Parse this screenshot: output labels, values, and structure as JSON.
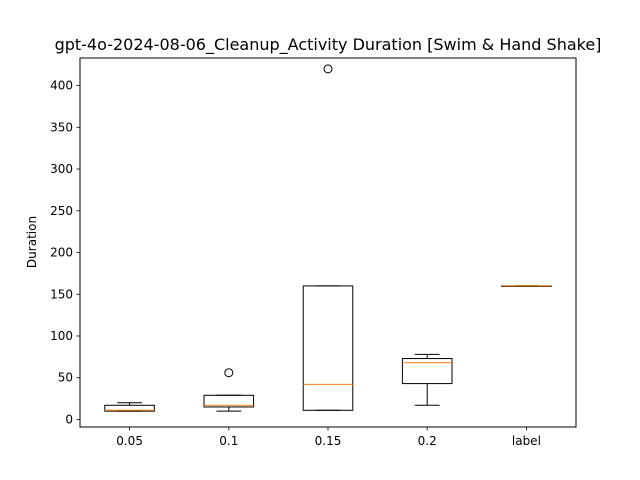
{
  "chart_data": {
    "type": "box",
    "title": "gpt-4o-2024-08-06_Cleanup_Activity Duration [Swim & Hand Shake]",
    "xlabel": "",
    "ylabel": "Duration",
    "ylim": [
      -9,
      433
    ],
    "yticks": [
      0,
      50,
      100,
      150,
      200,
      250,
      300,
      350,
      400
    ],
    "grid": false,
    "categories": [
      "0.05",
      "0.1",
      "0.15",
      "0.2",
      "label"
    ],
    "boxes": [
      {
        "category": "0.05",
        "whisker_low": 10,
        "q1": 10,
        "median": 11,
        "q3": 17,
        "whisker_high": 20,
        "outliers": []
      },
      {
        "category": "0.1",
        "whisker_low": 10,
        "q1": 15,
        "median": 17,
        "q3": 29,
        "whisker_high": 29,
        "outliers": [
          56
        ]
      },
      {
        "category": "0.15",
        "whisker_low": 11,
        "q1": 11,
        "median": 42,
        "q3": 160,
        "whisker_high": 160,
        "outliers": [
          420
        ]
      },
      {
        "category": "0.2",
        "whisker_low": 17,
        "q1": 43,
        "median": 68,
        "q3": 73,
        "whisker_high": 78,
        "outliers": []
      },
      {
        "category": "label",
        "whisker_low": 160,
        "q1": 160,
        "median": 160,
        "q3": 160,
        "whisker_high": 160,
        "outliers": []
      }
    ],
    "colors": {
      "box": "#000000",
      "median": "#ff7f0e",
      "outlier": "#000000"
    }
  }
}
